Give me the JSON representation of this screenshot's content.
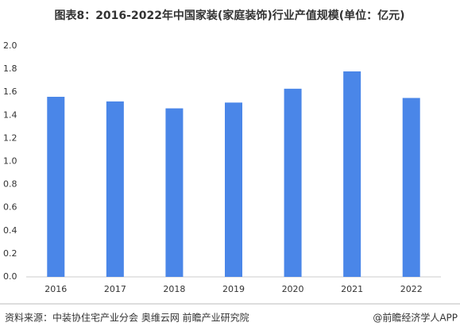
{
  "chart_data": {
    "type": "bar",
    "title": "图表8：2016-2022年中国家装(家庭装饰)行业产值规模(单位：亿元)",
    "categories": [
      "2016",
      "2017",
      "2018",
      "2019",
      "2020",
      "2021",
      "2022"
    ],
    "values": [
      1.56,
      1.52,
      1.46,
      1.51,
      1.63,
      1.78,
      1.55
    ],
    "color": "#4a86e8",
    "ylim": [
      0,
      2
    ],
    "yticks": [
      {
        "value": 0,
        "label": "0.0"
      },
      {
        "value": 0.2,
        "label": "0.2"
      },
      {
        "value": 0.4,
        "label": "0.4"
      },
      {
        "value": 0.6,
        "label": "0.6"
      },
      {
        "value": 0.8,
        "label": "0.8"
      },
      {
        "value": 1,
        "label": "1.0"
      },
      {
        "value": 1.2,
        "label": "1.2"
      },
      {
        "value": 1.4,
        "label": "1.4"
      },
      {
        "value": 1.6,
        "label": "1.6"
      },
      {
        "value": 1.8,
        "label": "1.8"
      },
      {
        "value": 2,
        "label": "2.0"
      }
    ],
    "grid": false,
    "source": "资料来源：中装协住宅产业分会 奥维云网 前瞻产业研究院",
    "credit": "@前瞻经济学人APP"
  }
}
